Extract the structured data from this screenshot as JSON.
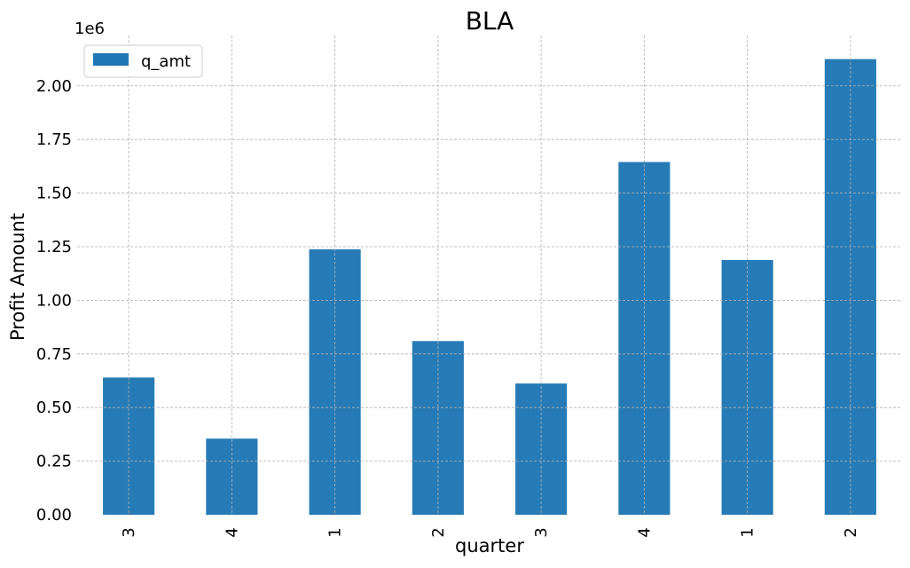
{
  "chart_data": {
    "type": "bar",
    "title": "BLA",
    "xlabel": "quarter",
    "ylabel": "Profit Amount",
    "y_multiplier_label": "1e6",
    "categories": [
      "3",
      "4",
      "1",
      "2",
      "3",
      "4",
      "1",
      "2"
    ],
    "series": [
      {
        "name": "q_amt",
        "values": [
          640000,
          355000,
          1238000,
          810000,
          612000,
          1645000,
          1188000,
          2125000
        ],
        "color": "#1f77b4"
      }
    ],
    "ylim": [
      0,
      2235000
    ],
    "yticks": [
      0,
      250000,
      500000,
      750000,
      1000000,
      1250000,
      1500000,
      1750000,
      2000000
    ],
    "ytick_labels": [
      "0.00",
      "0.25",
      "0.50",
      "0.75",
      "1.00",
      "1.25",
      "1.50",
      "1.75",
      "2.00"
    ],
    "grid": true,
    "legend_position": "top-left",
    "x_tick_rotation": "vertical"
  }
}
